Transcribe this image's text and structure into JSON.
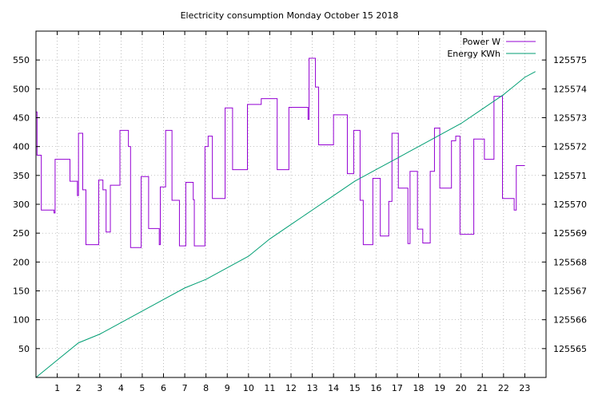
{
  "chart_data": {
    "type": "line",
    "title": "Electricity consumption Monday October 15 2018",
    "xlabel": "",
    "ylabel": "",
    "y2label": "",
    "xlim": [
      0,
      24
    ],
    "ylim": [
      0,
      600
    ],
    "y2lim": [
      125564,
      125576
    ],
    "x_ticks": [
      1,
      2,
      3,
      4,
      5,
      6,
      7,
      8,
      9,
      10,
      11,
      12,
      13,
      14,
      15,
      16,
      17,
      18,
      19,
      20,
      21,
      22,
      23
    ],
    "y_ticks": [
      50,
      100,
      150,
      200,
      250,
      300,
      350,
      400,
      450,
      500,
      550
    ],
    "y2_ticks": [
      125565,
      125566,
      125567,
      125568,
      125569,
      125570,
      125571,
      125572,
      125573,
      125574,
      125575
    ],
    "grid": true,
    "legend_position": "top-right",
    "series": [
      {
        "name": "Power W",
        "axis": "y",
        "color": "#9400d3",
        "step": true,
        "points": [
          [
            0,
            460
          ],
          [
            0.05,
            385
          ],
          [
            0.25,
            290
          ],
          [
            0.85,
            285
          ],
          [
            0.9,
            378
          ],
          [
            1.6,
            340
          ],
          [
            1.95,
            315
          ],
          [
            2.0,
            423
          ],
          [
            2.2,
            325
          ],
          [
            2.35,
            230
          ],
          [
            2.95,
            342
          ],
          [
            3.15,
            325
          ],
          [
            3.3,
            252
          ],
          [
            3.5,
            333
          ],
          [
            3.95,
            428
          ],
          [
            4.35,
            400
          ],
          [
            4.45,
            225
          ],
          [
            4.95,
            348
          ],
          [
            5.3,
            258
          ],
          [
            5.8,
            230
          ],
          [
            5.85,
            330
          ],
          [
            6.1,
            428
          ],
          [
            6.4,
            307
          ],
          [
            6.75,
            228
          ],
          [
            7.05,
            338
          ],
          [
            7.4,
            308
          ],
          [
            7.45,
            228
          ],
          [
            7.95,
            400
          ],
          [
            8.1,
            418
          ],
          [
            8.3,
            310
          ],
          [
            8.9,
            467
          ],
          [
            9.25,
            360
          ],
          [
            9.95,
            473
          ],
          [
            10.6,
            483
          ],
          [
            11.35,
            360
          ],
          [
            11.9,
            468
          ],
          [
            12.8,
            447
          ],
          [
            12.85,
            553
          ],
          [
            13.15,
            503
          ],
          [
            13.3,
            403
          ],
          [
            14.0,
            455
          ],
          [
            14.65,
            353
          ],
          [
            14.95,
            428
          ],
          [
            15.25,
            307
          ],
          [
            15.4,
            230
          ],
          [
            15.85,
            345
          ],
          [
            16.2,
            245
          ],
          [
            16.6,
            305
          ],
          [
            16.75,
            423
          ],
          [
            17.05,
            328
          ],
          [
            17.5,
            232
          ],
          [
            17.6,
            357
          ],
          [
            17.95,
            257
          ],
          [
            18.2,
            233
          ],
          [
            18.55,
            357
          ],
          [
            18.75,
            432
          ],
          [
            19.0,
            328
          ],
          [
            19.55,
            410
          ],
          [
            19.75,
            418
          ],
          [
            19.95,
            248
          ],
          [
            20.6,
            413
          ],
          [
            21.1,
            378
          ],
          [
            21.55,
            487
          ],
          [
            21.95,
            310
          ],
          [
            22.5,
            290
          ],
          [
            22.6,
            367
          ],
          [
            23.0,
            367
          ]
        ]
      },
      {
        "name": "Energy KWh",
        "axis": "y2",
        "color": "#009e73",
        "step": false,
        "points": [
          [
            0,
            125564.0
          ],
          [
            1,
            125564.6
          ],
          [
            2,
            125565.2
          ],
          [
            3,
            125565.5
          ],
          [
            4,
            125565.9
          ],
          [
            5,
            125566.3
          ],
          [
            6,
            125566.7
          ],
          [
            7,
            125567.1
          ],
          [
            8,
            125567.4
          ],
          [
            9,
            125567.8
          ],
          [
            10,
            125568.2
          ],
          [
            11,
            125568.8
          ],
          [
            12,
            125569.3
          ],
          [
            13,
            125569.8
          ],
          [
            14,
            125570.3
          ],
          [
            15,
            125570.8
          ],
          [
            16,
            125571.2
          ],
          [
            17,
            125571.6
          ],
          [
            18,
            125572.0
          ],
          [
            19,
            125572.4
          ],
          [
            20,
            125572.8
          ],
          [
            21,
            125573.3
          ],
          [
            22,
            125573.8
          ],
          [
            23,
            125574.4
          ],
          [
            23.5,
            125574.6
          ]
        ]
      }
    ]
  }
}
